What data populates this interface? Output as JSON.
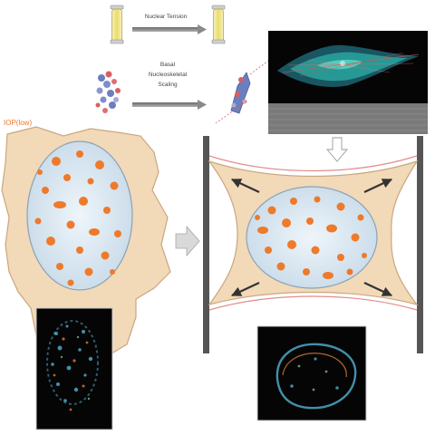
{
  "labels": {
    "top_arrow": "Nuclear Tension",
    "middle_arrow_line1": "Basal",
    "middle_arrow_line2": "Nucleoskeletal",
    "middle_arrow_line3": "Scaling",
    "left_cell": "IOP(low)"
  },
  "colors": {
    "cytoplasm": "#f2d9b8",
    "cytoplasm_edge": "#caa77e",
    "nucleus": "#d9e8f2",
    "nucleus_edge": "#8aa2b8",
    "chromatin": "#ee7a2a",
    "arrow_gray": "#777777",
    "pillar": "#555555",
    "tension_line": "#e58a8a",
    "accent_label": "#ee7a2a",
    "panel_bg": "#000000",
    "stretch_arrow": "#333333"
  },
  "icons": [
    "test-tube-icon",
    "protein-structure-icon",
    "microscopy-image",
    "fluorescence-image",
    "down-arrow-icon",
    "right-arrow-icon"
  ]
}
